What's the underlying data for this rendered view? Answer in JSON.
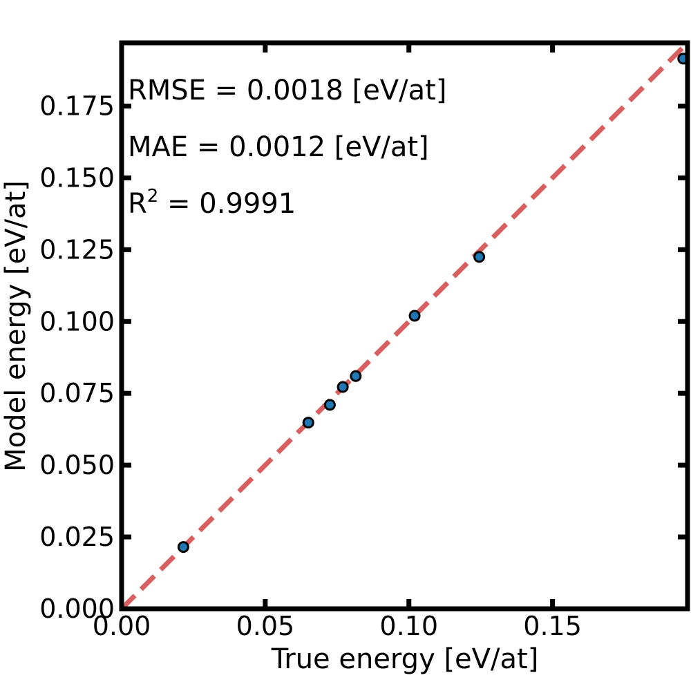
{
  "chart_data": {
    "type": "scatter",
    "title": "",
    "xlabel": "True energy [eV/at]",
    "ylabel": "Model energy [eV/at]",
    "xlim": [
      0,
      0.197
    ],
    "ylim": [
      0,
      0.197
    ],
    "xticks": [
      0.0,
      0.05,
      0.1,
      0.15
    ],
    "xtick_labels": [
      "0.00",
      "0.05",
      "0.10",
      "0.15"
    ],
    "yticks": [
      0.0,
      0.025,
      0.05,
      0.075,
      0.1,
      0.125,
      0.15,
      0.175
    ],
    "ytick_labels": [
      "0.000",
      "0.025",
      "0.050",
      "0.075",
      "0.100",
      "0.125",
      "0.150",
      "0.175"
    ],
    "grid": false,
    "reference_line": {
      "from": [
        0,
        0
      ],
      "to": [
        0.197,
        0.197
      ],
      "style": "dashed",
      "color": "#d95f5f"
    },
    "points_color": "#1f77b4",
    "points_edge_color": "#000000",
    "x": [
      0.0215,
      0.065,
      0.0725,
      0.077,
      0.0815,
      0.102,
      0.1245,
      0.1955
    ],
    "y": [
      0.0215,
      0.0648,
      0.071,
      0.0772,
      0.081,
      0.102,
      0.1225,
      0.1915
    ],
    "annotations": [
      {
        "text": "RMSE = 0.0018 [eV/at]"
      },
      {
        "text": "MAE = 0.0012 [eV/at]"
      },
      {
        "base": "R",
        "sup": "2",
        "rest": " = 0.9991"
      }
    ]
  }
}
